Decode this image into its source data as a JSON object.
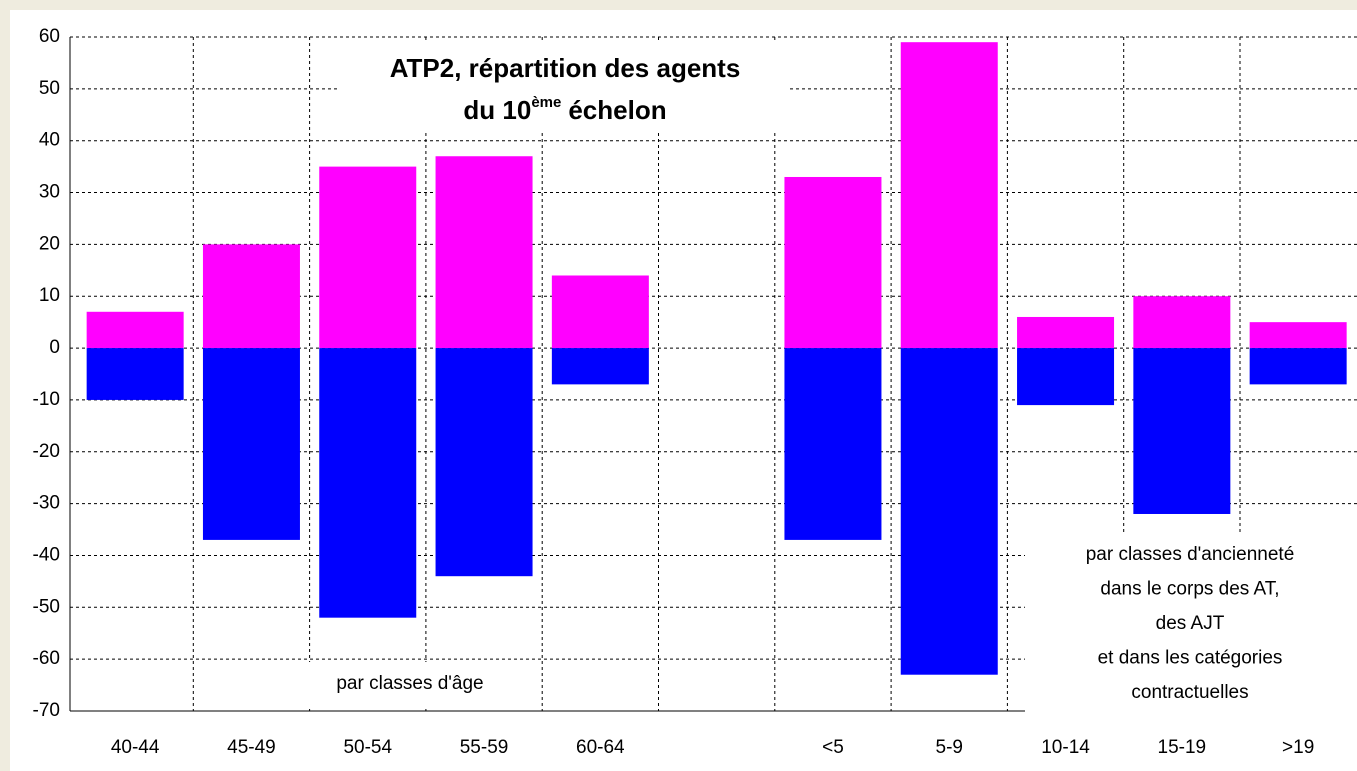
{
  "chart_data": {
    "type": "bar",
    "title": [
      "ATP2, répartition des agents",
      "du 10",
      "ème",
      "échelon"
    ],
    "categories": [
      "40-44",
      "45-49",
      "50-54",
      "55-59",
      "60-64",
      null,
      "<5",
      "5-9",
      "10-14",
      "15-19",
      ">19"
    ],
    "series": [
      {
        "color": "#ff00ff",
        "values": [
          7,
          20,
          35,
          37,
          14,
          null,
          33,
          59,
          6,
          10,
          5
        ]
      },
      {
        "color": "#0000ff",
        "values": [
          -10,
          -37,
          -52,
          -44,
          -7,
          null,
          -37,
          -63,
          -11,
          -32,
          -7
        ]
      }
    ],
    "annotations": [
      "par classes d'âge",
      "par classes d'ancienneté",
      "dans le corps des AT,",
      "des AJT",
      "et dans les catégories",
      "contractuelles"
    ],
    "ylim": [
      -70,
      60
    ],
    "yticks": [
      60,
      50,
      40,
      30,
      20,
      10,
      0,
      -10,
      -20,
      -30,
      -40,
      -50,
      -60,
      -70
    ],
    "grid": true
  }
}
